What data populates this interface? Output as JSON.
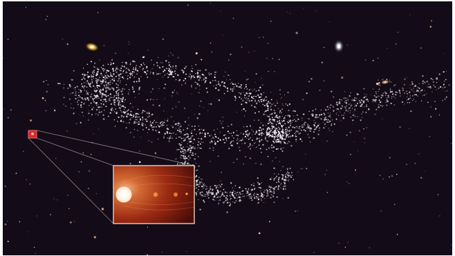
{
  "scene": {
    "description_type": "astronomical illustration",
    "background_color": "#140b18",
    "border_color": "#ffffff",
    "star_color": "#f3f0f2",
    "inset_glow_colors": [
      "#6a140c",
      "#a2361a",
      "#e07a38"
    ],
    "inset_border_color": "#d9c3b6",
    "highlight_box_color": "#e2353a"
  }
}
